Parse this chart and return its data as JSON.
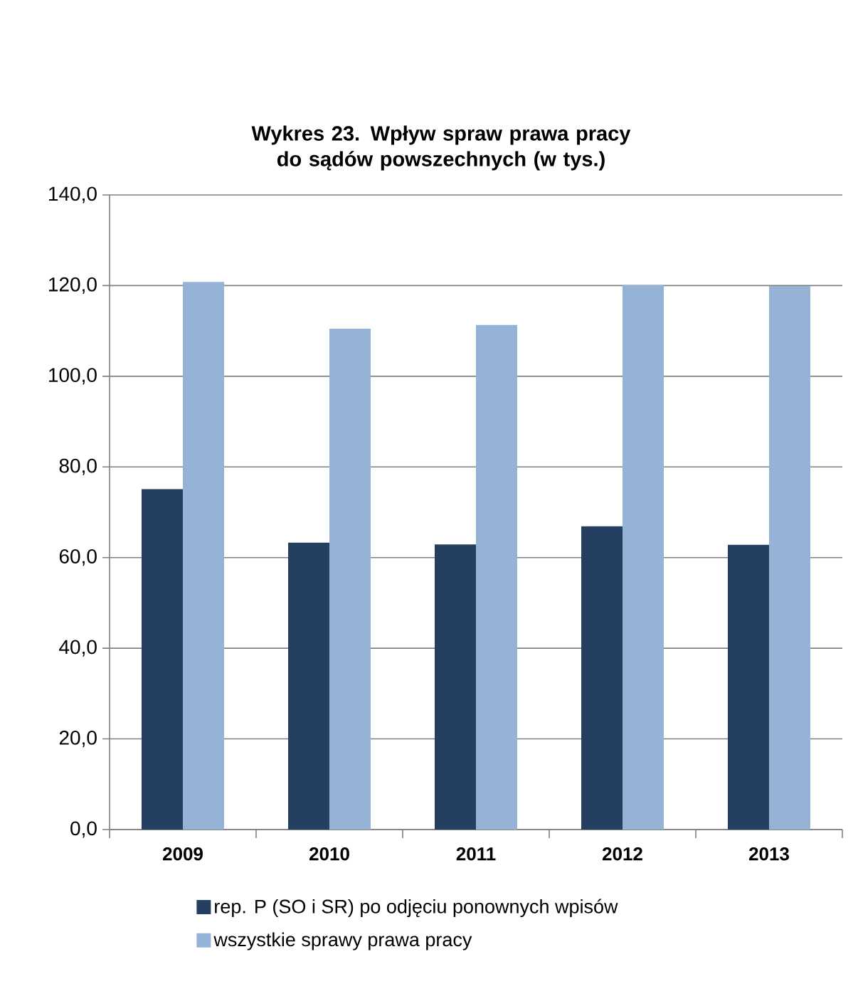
{
  "chart_data": {
    "type": "bar",
    "title": "Wykres 23. Wpływ spraw  prawa pracy do sądów powszechnych (w tys.)",
    "categories": [
      "2009",
      "2010",
      "2011",
      "2012",
      "2013"
    ],
    "series": [
      {
        "name": "rep. P (SO i SR) po odjęciu ponownych wpisów",
        "color": "#253f60",
        "values": [
          75.1,
          63.3,
          62.9,
          66.9,
          62.8
        ]
      },
      {
        "name": "wszystkie sprawy prawa pracy",
        "color": "#95b3d7",
        "values": [
          120.8,
          110.5,
          111.3,
          120.1,
          119.9
        ]
      }
    ],
    "ylim": [
      0,
      140
    ],
    "yticks": [
      {
        "value": 0,
        "label": "0,0"
      },
      {
        "value": 20,
        "label": "20,0"
      },
      {
        "value": 40,
        "label": "40,0"
      },
      {
        "value": 60,
        "label": "60,0"
      },
      {
        "value": 80,
        "label": "80,0"
      },
      {
        "value": 100,
        "label": "100,0"
      },
      {
        "value": 120,
        "label": "120,0"
      },
      {
        "value": 140,
        "label": "140,0"
      }
    ],
    "grid": "y",
    "legend": "bottom"
  }
}
